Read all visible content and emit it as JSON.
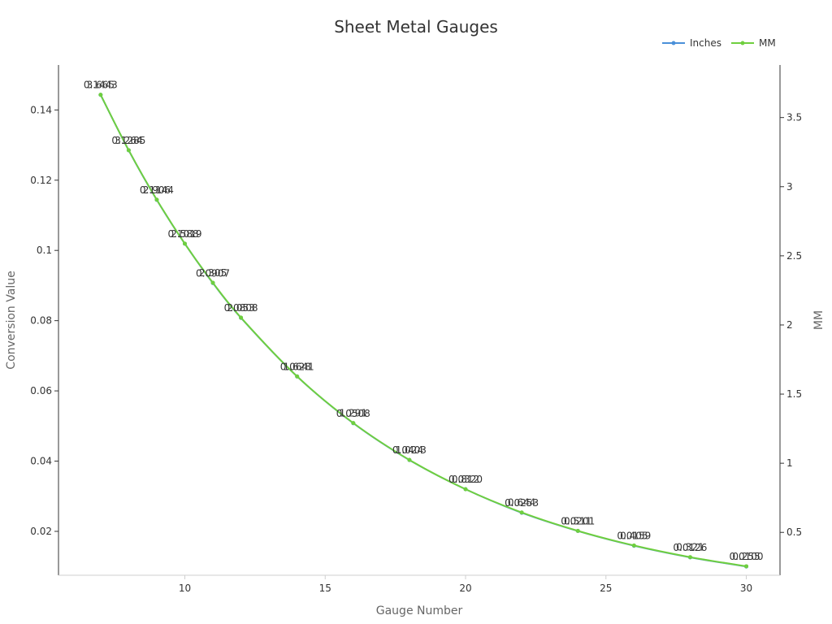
{
  "chart_data": {
    "type": "line",
    "title": "Sheet Metal Gauges",
    "xlabel": "Gauge Number",
    "ylabel": "Conversion Value",
    "y2label": "MM",
    "x": [
      7,
      8,
      9,
      10,
      11,
      12,
      14,
      16,
      18,
      20,
      22,
      24,
      26,
      28,
      30
    ],
    "xlim": [
      5.5,
      31.2
    ],
    "xticks": [
      10,
      15,
      20,
      25,
      30
    ],
    "ylim": [
      0.0075,
      0.1528
    ],
    "yticks": [
      0.02,
      0.04,
      0.06,
      0.08,
      0.1,
      0.12,
      0.14
    ],
    "y2lim": [
      0.19,
      3.88
    ],
    "y2ticks": [
      0.5,
      1,
      1.5,
      2,
      2.5,
      3,
      3.5
    ],
    "grid": false,
    "legend_position": "top-right",
    "series": [
      {
        "name": "Inches",
        "axis": "left",
        "color": "#4a90d9",
        "values": [
          0.1443,
          0.1285,
          0.1144,
          0.1019,
          0.0907,
          0.0808,
          0.0641,
          0.0508,
          0.0403,
          0.032,
          0.0253,
          0.0201,
          0.0159,
          0.0126,
          0.01
        ]
      },
      {
        "name": "MM",
        "axis": "right",
        "color": "#6fcf3f",
        "values": [
          3.665,
          3.264,
          2.906,
          2.588,
          2.305,
          2.053,
          1.628,
          1.291,
          1.024,
          0.812,
          0.644,
          0.511,
          0.405,
          0.321,
          0.255
        ]
      }
    ],
    "data_labels": [
      "0.1443",
      "0.1285",
      "0.1144",
      "0.1019",
      "0.0907",
      "0.0808",
      "0.0641",
      "0.0508",
      "0.0403",
      "0.0320",
      "0.0253",
      "0.0201",
      "0.0159",
      "0.0126",
      "0.0100",
      "3.665",
      "3.264",
      "2.906",
      "2.588",
      "2.305",
      "2.053",
      "1.628",
      "1.291",
      "1.024",
      "0.812",
      "0.644",
      "0.511",
      "0.405",
      "0.321",
      "0.255"
    ]
  },
  "legend": {
    "items": [
      {
        "label": "Inches",
        "color": "#4a90d9"
      },
      {
        "label": "MM",
        "color": "#6fcf3f"
      }
    ]
  },
  "colors": {
    "axis": "#333333",
    "bottom_axis": "#cfcfcf",
    "text": "#333333",
    "muted_text": "#666666"
  }
}
